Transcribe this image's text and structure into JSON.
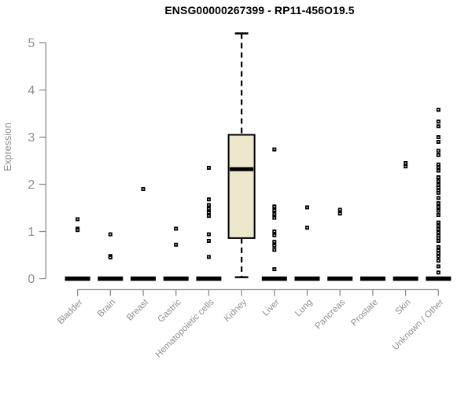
{
  "page": {
    "window_title": "ENSG00000267399 - RP11-456O19.5"
  },
  "chart_data": {
    "type": "boxplot",
    "title": "ENSG00000267399 - RP11-456O19.5",
    "xlabel": "",
    "ylabel": "Expression",
    "ylim": [
      0,
      5.2
    ],
    "yticks": [
      0,
      1,
      2,
      3,
      4,
      5
    ],
    "grid": false,
    "legend": null,
    "marker_style": "small-open-black-square",
    "colors": {
      "box_fill": "#EDE8CC",
      "box_stroke": "#000000",
      "median": "#000000",
      "zero_bar": "#000000",
      "marker": "#000000",
      "axis": "#8C8C8C",
      "tick_labels": "#8E8E8E",
      "title": "#000000"
    },
    "categories": [
      "Bladder",
      "Brain",
      "Breast",
      "Gastric",
      "Hematopoietic cells",
      "Kidney",
      "Liver",
      "Lung",
      "Pancreas",
      "Prostate",
      "Skin",
      "Unknown / Other"
    ],
    "series": [
      {
        "name": "Bladder",
        "zero_bar": true,
        "box": null,
        "points": [
          1.26,
          1.06,
          1.03
        ]
      },
      {
        "name": "Brain",
        "zero_bar": true,
        "box": null,
        "points": [
          0.94,
          0.48,
          0.45
        ]
      },
      {
        "name": "Breast",
        "zero_bar": true,
        "box": null,
        "points": [
          1.9
        ]
      },
      {
        "name": "Gastric",
        "zero_bar": true,
        "box": null,
        "points": [
          1.06,
          0.72
        ]
      },
      {
        "name": "Hematopoietic cells",
        "zero_bar": true,
        "box": null,
        "points": [
          2.35,
          1.68,
          1.56,
          1.48,
          1.4,
          1.33,
          0.94,
          0.8,
          0.46
        ]
      },
      {
        "name": "Kidney",
        "zero_bar": false,
        "box": {
          "whisker_low": 0.03,
          "q1": 0.86,
          "median": 2.32,
          "q3": 3.05,
          "whisker_high": 5.2
        },
        "points": []
      },
      {
        "name": "Liver",
        "zero_bar": true,
        "box": null,
        "points": [
          2.74,
          1.53,
          1.45,
          1.37,
          1.29,
          1.0,
          0.92,
          0.78,
          0.7,
          0.61,
          0.2
        ]
      },
      {
        "name": "Lung",
        "zero_bar": true,
        "box": null,
        "points": [
          1.51,
          1.08
        ]
      },
      {
        "name": "Pancreas",
        "zero_bar": true,
        "box": null,
        "points": [
          1.46,
          1.38
        ]
      },
      {
        "name": "Prostate",
        "zero_bar": true,
        "box": null,
        "points": []
      },
      {
        "name": "Skin",
        "zero_bar": true,
        "box": null,
        "points": [
          2.45,
          2.38
        ]
      },
      {
        "name": "Unknown / Other",
        "zero_bar": true,
        "box": null,
        "points": [
          3.58,
          3.33,
          3.23,
          3.0,
          2.9,
          2.71,
          2.62,
          2.42,
          2.36,
          2.29,
          2.15,
          2.07,
          1.99,
          1.93,
          1.87,
          1.82,
          1.71,
          1.6,
          1.52,
          1.44,
          1.35,
          1.19,
          1.12,
          1.05,
          0.98,
          0.91,
          0.86,
          0.8,
          0.67,
          0.6,
          0.54,
          0.47,
          0.38,
          0.26,
          0.13
        ]
      }
    ]
  }
}
